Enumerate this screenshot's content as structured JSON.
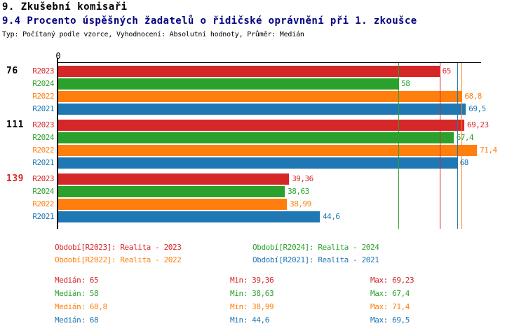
{
  "header": {
    "title": "9. Zkušební komisaři",
    "subtitle": "9.4 Procento úspěšných žadatelů o řidičské oprávnění při 1. zkoušce",
    "meta": "Typ: Počítaný podle vzorce, Vyhodnocení: Absolutní hodnoty, Průměr: Medián"
  },
  "colors": {
    "R2023": "#d62728",
    "R2024": "#2ca02c",
    "R2022": "#ff7f0e",
    "R2021": "#1f77b4",
    "axis": "#000000",
    "subtitle": "#000080",
    "group_label_default": "#000000",
    "group_label_highlight": "#d62728"
  },
  "chart_data": {
    "type": "bar",
    "orientation": "horizontal",
    "title": "9.4 Procento úspěšných žadatelů o řidičské oprávnění při 1. zkoušce",
    "xlabel": "",
    "ylabel": "",
    "xlim": [
      0,
      72.1
    ],
    "axis_tick": "0",
    "grid": false,
    "legend_position": "bottom",
    "series_order": [
      "R2023",
      "R2024",
      "R2022",
      "R2021"
    ],
    "groups": [
      {
        "label": "76",
        "label_color": "#000000",
        "values": {
          "R2023": 65,
          "R2024": 58,
          "R2022": 68.8,
          "R2021": 69.5
        },
        "display": {
          "R2023": "65",
          "R2024": "58",
          "R2022": "68,8",
          "R2021": "69,5"
        }
      },
      {
        "label": "111",
        "label_color": "#000000",
        "values": {
          "R2023": 69.23,
          "R2024": 67.4,
          "R2022": 71.4,
          "R2021": 68
        },
        "display": {
          "R2023": "69,23",
          "R2024": "67,4",
          "R2022": "71,4",
          "R2021": "68"
        }
      },
      {
        "label": "139",
        "label_color": "#d62728",
        "values": {
          "R2023": 39.36,
          "R2024": 38.63,
          "R2022": 38.99,
          "R2021": 44.6
        },
        "display": {
          "R2023": "39,36",
          "R2024": "38,63",
          "R2022": "38,99",
          "R2021": "44,6"
        }
      }
    ],
    "median_lines": [
      {
        "series": "R2024",
        "value": 58
      },
      {
        "series": "R2023",
        "value": 65
      },
      {
        "series": "R2021",
        "value": 68
      },
      {
        "series": "R2022",
        "value": 68.8
      }
    ]
  },
  "legend": {
    "items": [
      {
        "series": "R2023",
        "label": "Období[R2023]: Realita - 2023"
      },
      {
        "series": "R2024",
        "label": "Období[R2024]: Realita - 2024"
      },
      {
        "series": "R2022",
        "label": "Období[R2022]: Realita - 2022"
      },
      {
        "series": "R2021",
        "label": "Období[R2021]: Realita - 2021"
      }
    ]
  },
  "stats": {
    "rows": [
      {
        "series": "R2023",
        "median": "Medián: 65",
        "min": "Min: 39,36",
        "max": "Max: 69,23"
      },
      {
        "series": "R2024",
        "median": "Medián: 58",
        "min": "Min: 38,63",
        "max": "Max: 67,4"
      },
      {
        "series": "R2022",
        "median": "Medián: 68,8",
        "min": "Min: 38,99",
        "max": "Max: 71,4"
      },
      {
        "series": "R2021",
        "median": "Medián: 68",
        "min": "Min: 44,6",
        "max": "Max: 69,5"
      }
    ]
  }
}
